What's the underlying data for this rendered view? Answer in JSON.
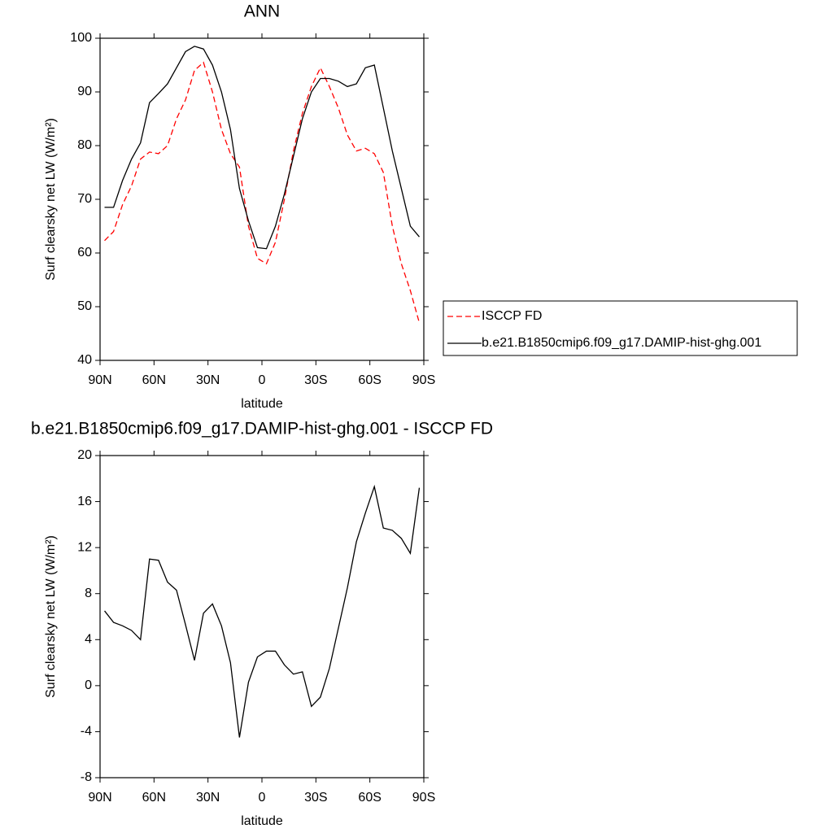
{
  "chart_data": [
    {
      "type": "line",
      "title": "ANN",
      "x_label": "latitude",
      "y_label": "Surf clearsky net LW (W/m²)",
      "x": [
        87.5,
        82.5,
        77.5,
        72.5,
        67.5,
        62.5,
        57.5,
        52.5,
        47.5,
        42.5,
        37.5,
        32.5,
        27.5,
        22.5,
        17.5,
        12.5,
        7.5,
        2.5,
        -2.5,
        -7.5,
        -12.5,
        -17.5,
        -22.5,
        -27.5,
        -32.5,
        -37.5,
        -42.5,
        -47.5,
        -52.5,
        -57.5,
        -62.5,
        -67.5,
        -72.5,
        -77.5,
        -82.5,
        -87.5
      ],
      "series": [
        {
          "name": "ISCCP FD",
          "color": "#ff0000",
          "dash": true,
          "values": [
            62.3,
            64,
            69,
            72.5,
            77.5,
            78.8,
            78.5,
            80,
            85,
            88.5,
            94,
            95.5,
            90,
            83,
            78.5,
            76,
            65,
            59,
            58,
            62,
            70,
            79,
            86,
            91,
            94.5,
            91,
            87,
            82,
            79,
            79.5,
            78.5,
            75,
            65,
            58,
            53,
            47
          ]
        },
        {
          "name": "b.e21.B1850cmip6.f09_g17.DAMIP-hist-ghg.001",
          "color": "#000000",
          "dash": false,
          "values": [
            68.5,
            68.5,
            73.5,
            77.5,
            80.5,
            88,
            89.7,
            91.5,
            94.5,
            97.5,
            98.5,
            98,
            95,
            90,
            83,
            72,
            66,
            61,
            60.8,
            65,
            71,
            78,
            85,
            90,
            92.5,
            92.5,
            92,
            91,
            91.5,
            94.5,
            95,
            87,
            79,
            72,
            65,
            63
          ]
        }
      ],
      "xlim": [
        90,
        -90
      ],
      "xticks": [
        {
          "value": 90,
          "label": "90N"
        },
        {
          "value": 60,
          "label": "60N"
        },
        {
          "value": 30,
          "label": "30N"
        },
        0,
        {
          "value": -30,
          "label": "30S"
        },
        {
          "value": -60,
          "label": "60S"
        },
        {
          "value": -90,
          "label": "90S"
        }
      ],
      "ylim": [
        40,
        100
      ],
      "yticks": [
        40,
        50,
        60,
        70,
        80,
        90,
        100
      ],
      "legend": "right"
    },
    {
      "type": "line",
      "title": "b.e21.B1850cmip6.f09_g17.DAMIP-hist-ghg.001 - ISCCP FD",
      "x_label": "latitude",
      "y_label": "Surf clearsky net LW (W/m²)",
      "x": [
        87.5,
        82.5,
        77.5,
        72.5,
        67.5,
        62.5,
        57.5,
        52.5,
        47.5,
        42.5,
        37.5,
        32.5,
        27.5,
        22.5,
        17.5,
        12.5,
        7.5,
        2.5,
        -2.5,
        -7.5,
        -12.5,
        -17.5,
        -22.5,
        -27.5,
        -32.5,
        -37.5,
        -42.5,
        -47.5,
        -52.5,
        -57.5,
        -62.5,
        -67.5,
        -72.5,
        -77.5,
        -82.5,
        -87.5
      ],
      "series": [
        {
          "color": "#000000",
          "dash": false,
          "values": [
            6.5,
            5.5,
            5.2,
            4.8,
            4,
            11,
            10.9,
            9,
            8.3,
            5.3,
            2.2,
            6.3,
            7.1,
            5.2,
            2,
            -4.5,
            0.3,
            2.5,
            3,
            3,
            1.8,
            1,
            1.2,
            -1.8,
            -1,
            1.5,
            5,
            8.5,
            12.5,
            15,
            17.3,
            13.7,
            13.5,
            12.8,
            11.5,
            17.2
          ]
        }
      ],
      "xlim": [
        90,
        -90
      ],
      "xticks": [
        {
          "value": 90,
          "label": "90N"
        },
        {
          "value": 60,
          "label": "60N"
        },
        {
          "value": 30,
          "label": "30N"
        },
        0,
        {
          "value": -30,
          "label": "30S"
        },
        {
          "value": -60,
          "label": "60S"
        },
        {
          "value": -90,
          "label": "90S"
        }
      ],
      "ylim": [
        -8,
        20
      ],
      "yticks": [
        -8,
        -4,
        0,
        4,
        8,
        12,
        16,
        20
      ]
    }
  ]
}
